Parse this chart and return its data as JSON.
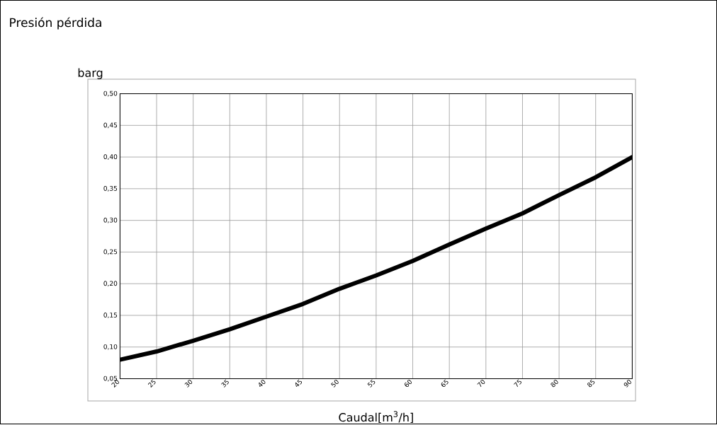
{
  "chart_data": {
    "type": "line",
    "title": "Presión pérdida",
    "xlabel": "Caudal[m$^{3}$/h]",
    "ylabel": "barg",
    "x": [
      20,
      25,
      30,
      35,
      40,
      45,
      50,
      55,
      60,
      65,
      70,
      75,
      80,
      85,
      90
    ],
    "series": [
      {
        "color": "#000000",
        "values": [
          0.08,
          0.093,
          0.11,
          0.128,
          0.148,
          0.168,
          0.192,
          0.213,
          0.236,
          0.262,
          0.287,
          0.311,
          0.34,
          0.368,
          0.4
        ]
      }
    ],
    "xlim": [
      20,
      90
    ],
    "xticks": [
      20,
      25,
      30,
      35,
      40,
      45,
      50,
      55,
      60,
      65,
      70,
      75,
      80,
      85,
      90
    ],
    "ylim": [
      0.05,
      0.5
    ],
    "yticks": [
      {
        "value": 0.05,
        "label": "0,05"
      },
      {
        "value": 0.1,
        "label": "0,10"
      },
      {
        "value": 0.15,
        "label": "0,15"
      },
      {
        "value": 0.2,
        "label": "0,20"
      },
      {
        "value": 0.25,
        "label": "0,25"
      },
      {
        "value": 0.3,
        "label": "0,30"
      },
      {
        "value": 0.35,
        "label": "0,35"
      },
      {
        "value": 0.4,
        "label": "0,40"
      },
      {
        "value": 0.45,
        "label": "0,45"
      },
      {
        "value": 0.5,
        "label": "0,50"
      }
    ],
    "grid": true
  }
}
